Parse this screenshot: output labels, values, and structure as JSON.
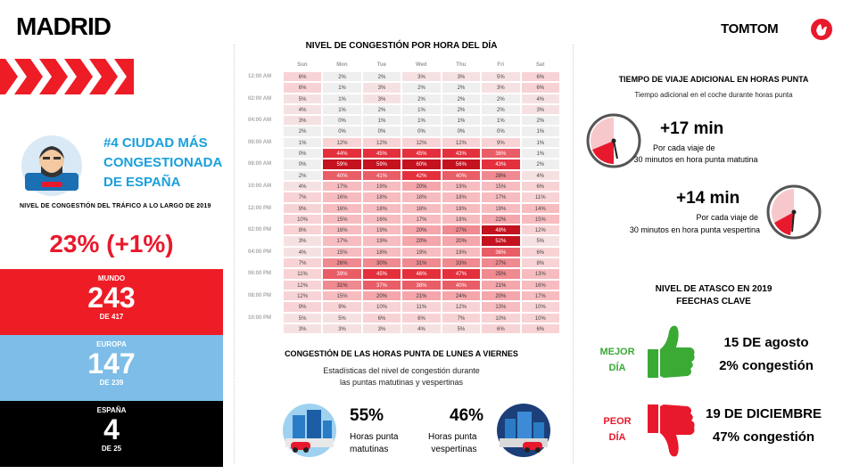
{
  "city": "MADRID",
  "rank": {
    "headline": "#4 CIUDAD MÁS CONGESTIONADA DE ESPAÑA",
    "lines": [
      "#4 CIUDAD MÁS",
      "CONGESTIONADA",
      "DE ESPAÑA"
    ]
  },
  "level_label": "NIVEL DE CONGESTIÓN DEL TRÁFICO A LO LARGO DE 2019",
  "level_value": "23% (+1%)",
  "rankings": [
    {
      "title": "MUNDO",
      "value": "243",
      "denominator": "DE 417",
      "color": "#ee1c25"
    },
    {
      "title": "EUROPA",
      "value": "147",
      "denominator": "DE 239",
      "color": "#7dbde8"
    },
    {
      "title": "ESPAÑA",
      "value": "4",
      "denominator": "DE 25",
      "color": "#000000"
    }
  ],
  "heatmap": {
    "title": "NIVEL DE CONGESTIÓN POR HORA DEL DÍA",
    "days": [
      "Sun",
      "Mon",
      "Tue",
      "Wed",
      "Thu",
      "Fri",
      "Sat"
    ],
    "hour_labels": [
      "12:00 AM",
      "",
      "02:00 AM",
      "",
      "04:00 AM",
      "",
      "06:00 AM",
      "",
      "08:00 AM",
      "",
      "10:00 AM",
      "",
      "12:00 PM",
      "",
      "02:00 PM",
      "",
      "04:00 PM",
      "",
      "06:00 PM",
      "",
      "08:00 PM",
      "",
      "10:00 PM",
      ""
    ],
    "rows": [
      [
        "6%",
        "2%",
        "2%",
        "3%",
        "3%",
        "5%",
        "6%"
      ],
      [
        "6%",
        "1%",
        "3%",
        "2%",
        "2%",
        "3%",
        "6%"
      ],
      [
        "5%",
        "1%",
        "3%",
        "2%",
        "2%",
        "2%",
        "4%"
      ],
      [
        "4%",
        "1%",
        "2%",
        "1%",
        "2%",
        "2%",
        "3%"
      ],
      [
        "3%",
        "0%",
        "1%",
        "1%",
        "1%",
        "1%",
        "2%"
      ],
      [
        "2%",
        "0%",
        "0%",
        "0%",
        "0%",
        "0%",
        "1%"
      ],
      [
        "1%",
        "12%",
        "12%",
        "12%",
        "12%",
        "9%",
        "1%"
      ],
      [
        "0%",
        "44%",
        "45%",
        "45%",
        "43%",
        "36%",
        "1%"
      ],
      [
        "0%",
        "59%",
        "59%",
        "60%",
        "56%",
        "43%",
        "2%"
      ],
      [
        "2%",
        "40%",
        "41%",
        "42%",
        "40%",
        "28%",
        "4%"
      ],
      [
        "4%",
        "17%",
        "19%",
        "20%",
        "19%",
        "15%",
        "6%"
      ],
      [
        "7%",
        "16%",
        "18%",
        "18%",
        "18%",
        "17%",
        "11%"
      ],
      [
        "9%",
        "16%",
        "18%",
        "18%",
        "18%",
        "19%",
        "14%"
      ],
      [
        "10%",
        "15%",
        "16%",
        "17%",
        "18%",
        "22%",
        "15%"
      ],
      [
        "8%",
        "16%",
        "19%",
        "20%",
        "27%",
        "48%",
        "12%"
      ],
      [
        "3%",
        "17%",
        "19%",
        "20%",
        "20%",
        "52%",
        "5%"
      ],
      [
        "4%",
        "15%",
        "18%",
        "19%",
        "19%",
        "36%",
        "6%"
      ],
      [
        "7%",
        "26%",
        "30%",
        "31%",
        "33%",
        "27%",
        "8%"
      ],
      [
        "11%",
        "39%",
        "45%",
        "46%",
        "47%",
        "25%",
        "13%"
      ],
      [
        "12%",
        "31%",
        "37%",
        "38%",
        "40%",
        "21%",
        "16%"
      ],
      [
        "12%",
        "15%",
        "20%",
        "21%",
        "24%",
        "20%",
        "17%"
      ],
      [
        "9%",
        "9%",
        "10%",
        "11%",
        "12%",
        "13%",
        "10%"
      ],
      [
        "5%",
        "5%",
        "6%",
        "6%",
        "7%",
        "10%",
        "10%"
      ],
      [
        "3%",
        "3%",
        "3%",
        "4%",
        "5%",
        "6%",
        "6%"
      ]
    ]
  },
  "peak": {
    "title": "CONGESTIÓN DE LAS HORAS PUNTA DE LUNES A VIERNES",
    "subtitle_lines": [
      "Estadísticas del nivel de congestión durante",
      "las puntas matutinas y vespertinas"
    ],
    "morning": {
      "value": "55%",
      "label_lines": [
        "Horas punta",
        "matutinas"
      ]
    },
    "evening": {
      "value": "46%",
      "label_lines": [
        "Horas punta",
        "vespertinas"
      ]
    }
  },
  "brand": "TOMTOM",
  "extra_time": {
    "title": "TIEMPO DE VIAJE ADICIONAL EN HORAS PUNTA",
    "subtitle": "Tiempo adicional en el coche durante horas punta",
    "morning": {
      "value": "+17 min",
      "lines": [
        "Por cada viaje de",
        "30 minutos en hora punta matutina"
      ]
    },
    "evening": {
      "value": "+14 min",
      "lines": [
        "Por cada viaje de",
        "30 minutos en hora punta vespertina"
      ]
    }
  },
  "key_dates": {
    "title_lines": [
      "NIVEL DE ATASCO EN 2019",
      "FEECHAS CLAVE"
    ],
    "best": {
      "label_lines": [
        "MEJOR",
        "DÍA"
      ],
      "date": "15 DE agosto",
      "congestion": "2% congestión",
      "color": "#3aaa35"
    },
    "worst": {
      "label_lines": [
        "PEOR",
        "DÍA"
      ],
      "date": "19 DE DICIEMBRE",
      "congestion": "47% congestión",
      "color": "#e8192c"
    }
  }
}
